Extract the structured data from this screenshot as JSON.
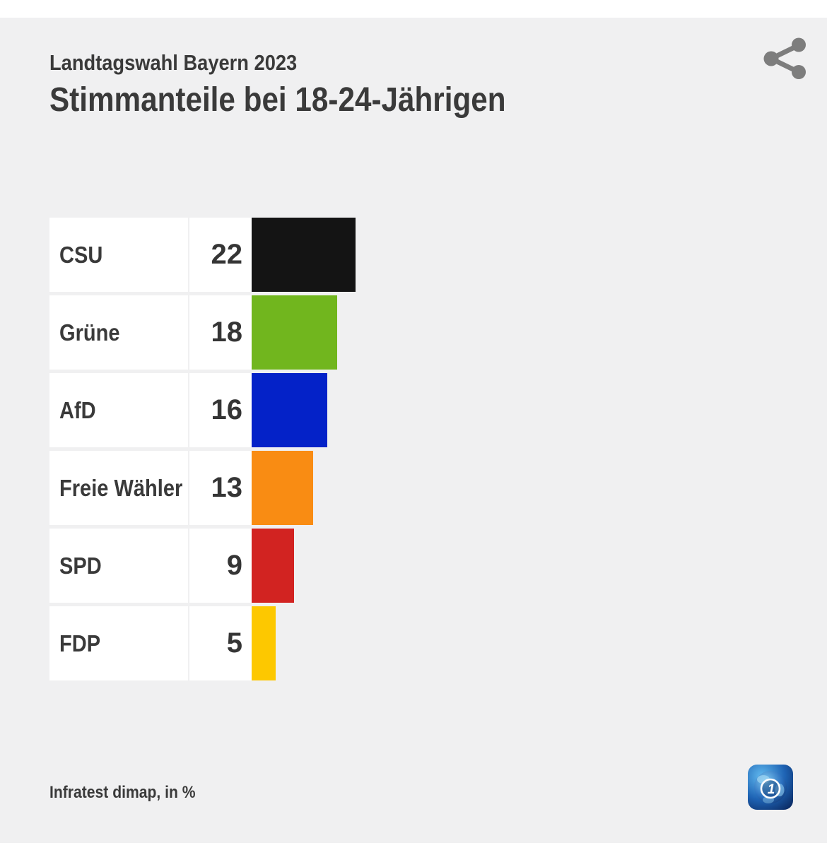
{
  "header": {
    "kicker": "Landtagswahl Bayern 2023",
    "title": "Stimmanteile bei 18-24-Jährigen"
  },
  "footer": {
    "source": "Infratest dimap, in %"
  },
  "icons": {
    "share": {
      "name": "share-icon",
      "color": "#7d7d7d"
    },
    "brand": {
      "name": "ard-one-logo",
      "glyph": "1"
    }
  },
  "colors": {
    "page_background": "#ffffff",
    "panel_background": "#f0f0f1",
    "card_background": "#ffffff",
    "text": "#3a3a3a"
  },
  "chart_data": {
    "type": "bar",
    "orientation": "horizontal",
    "title": "Stimmanteile bei 18-24-Jährigen",
    "subtitle": "Landtagswahl Bayern 2023",
    "unit": "%",
    "source": "Infratest dimap, in %",
    "categories": [
      "CSU",
      "Grüne",
      "AfD",
      "Freie Wähler",
      "SPD",
      "FDP"
    ],
    "values": [
      22,
      18,
      16,
      13,
      9,
      5
    ],
    "colors": [
      "#141414",
      "#71b61e",
      "#0422c8",
      "#f98c13",
      "#d22321",
      "#fdc800"
    ],
    "xlim": [
      0,
      100
    ],
    "grid": false,
    "legend": false,
    "value_labels": "left-of-bar"
  }
}
